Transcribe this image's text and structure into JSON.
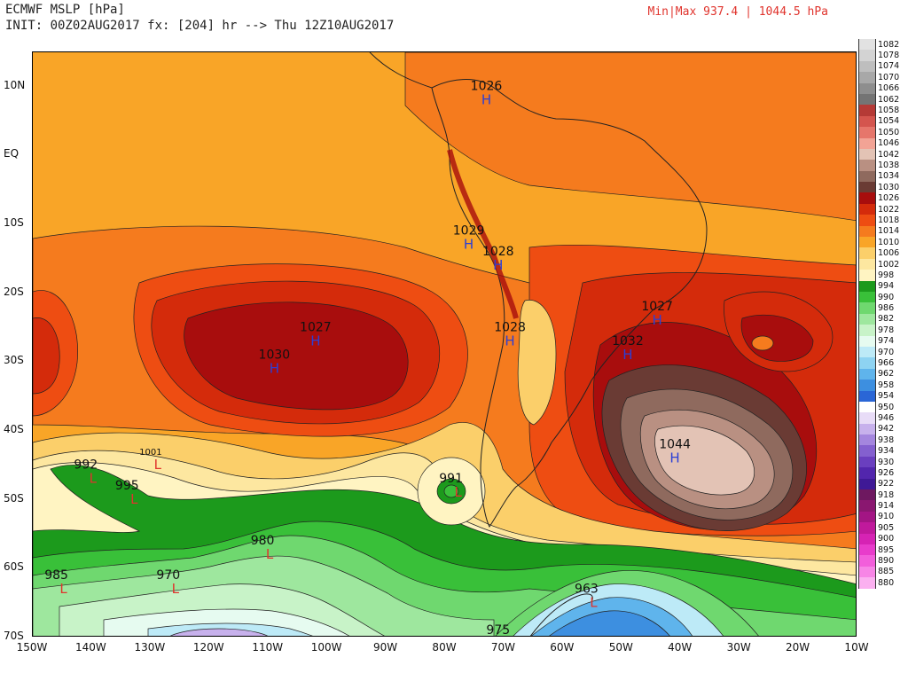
{
  "header": {
    "title": "ECMWF MSLP [hPa]",
    "init": "INIT: 00Z02AUG2017 fx: [204] hr --> Thu 12Z10AUG2017",
    "minmax": "Min|Max 937.4 | 1044.5 hPa"
  },
  "lat_labels": [
    {
      "text": "10N",
      "lat": 10
    },
    {
      "text": "EQ",
      "lat": 0
    },
    {
      "text": "10S",
      "lat": -10
    },
    {
      "text": "20S",
      "lat": -20
    },
    {
      "text": "30S",
      "lat": -30
    },
    {
      "text": "40S",
      "lat": -40
    },
    {
      "text": "50S",
      "lat": -50
    },
    {
      "text": "60S",
      "lat": -60
    },
    {
      "text": "70S",
      "lat": -70
    }
  ],
  "lon_labels": [
    {
      "text": "150W",
      "lon": -150
    },
    {
      "text": "140W",
      "lon": -140
    },
    {
      "text": "130W",
      "lon": -130
    },
    {
      "text": "120W",
      "lon": -120
    },
    {
      "text": "110W",
      "lon": -110
    },
    {
      "text": "100W",
      "lon": -100
    },
    {
      "text": "90W",
      "lon": -90
    },
    {
      "text": "80W",
      "lon": -80
    },
    {
      "text": "70W",
      "lon": -70
    },
    {
      "text": "60W",
      "lon": -60
    },
    {
      "text": "50W",
      "lon": -50
    },
    {
      "text": "40W",
      "lon": -40
    },
    {
      "text": "30W",
      "lon": -30
    },
    {
      "text": "20W",
      "lon": -20
    },
    {
      "text": "10W",
      "lon": -10
    }
  ],
  "pressure_centers": [
    {
      "type": "H",
      "value": "1026",
      "lon": -73,
      "lat": 9
    },
    {
      "type": "H",
      "value": "1029",
      "lon": -76,
      "lat": -12
    },
    {
      "type": "H",
      "value": "1028",
      "lon": -71,
      "lat": -15
    },
    {
      "type": "H",
      "value": "1027",
      "lon": -102,
      "lat": -26
    },
    {
      "type": "H",
      "value": "1030",
      "lon": -109,
      "lat": -30
    },
    {
      "type": "H",
      "value": "1028",
      "lon": -69,
      "lat": -26
    },
    {
      "type": "H",
      "value": "1027",
      "lon": -44,
      "lat": -23
    },
    {
      "type": "H",
      "value": "1032",
      "lon": -49,
      "lat": -28
    },
    {
      "type": "H",
      "value": "1044",
      "lon": -41,
      "lat": -43
    },
    {
      "type": "L",
      "value": "992",
      "lon": -141,
      "lat": -46
    },
    {
      "type": "L",
      "value": "1001",
      "lon": -130,
      "lat": -44
    },
    {
      "type": "L",
      "value": "995",
      "lon": -134,
      "lat": -49
    },
    {
      "type": "L",
      "value": "991",
      "lon": -79,
      "lat": -48
    },
    {
      "type": "L",
      "value": "980",
      "lon": -111,
      "lat": -57
    },
    {
      "type": "L",
      "value": "985",
      "lon": -146,
      "lat": -62
    },
    {
      "type": "L",
      "value": "970",
      "lon": -127,
      "lat": -62
    },
    {
      "type": "L",
      "value": "963",
      "lon": -56,
      "lat": -64
    },
    {
      "type": "L",
      "value": "975",
      "lon": -71,
      "lat": -70
    }
  ],
  "colorbar": [
    {
      "v": "1082",
      "c": "#e2e2e2"
    },
    {
      "v": "1078",
      "c": "#d3d3d3"
    },
    {
      "v": "1074",
      "c": "#bebebe"
    },
    {
      "v": "1070",
      "c": "#a8a8a8"
    },
    {
      "v": "1066",
      "c": "#8e8e8e"
    },
    {
      "v": "1062",
      "c": "#747474"
    },
    {
      "v": "1058",
      "c": "#b53a36"
    },
    {
      "v": "1054",
      "c": "#d4554e"
    },
    {
      "v": "1050",
      "c": "#e6766b"
    },
    {
      "v": "1046",
      "c": "#f2a395"
    },
    {
      "v": "1042",
      "c": "#e3c3b5"
    },
    {
      "v": "1038",
      "c": "#b99082"
    },
    {
      "v": "1034",
      "c": "#8f6a5e"
    },
    {
      "v": "1030",
      "c": "#6a3b34"
    },
    {
      "v": "1026",
      "c": "#a80d0d"
    },
    {
      "v": "1022",
      "c": "#d42b0b"
    },
    {
      "v": "1018",
      "c": "#ee4d12"
    },
    {
      "v": "1014",
      "c": "#f57b1e"
    },
    {
      "v": "1010",
      "c": "#f9a527"
    },
    {
      "v": "1006",
      "c": "#fbcf6a"
    },
    {
      "v": "1002",
      "c": "#fde7a0"
    },
    {
      "v": "998",
      "c": "#fff4c2"
    },
    {
      "v": "994",
      "c": "#1c9a1c"
    },
    {
      "v": "990",
      "c": "#39c039"
    },
    {
      "v": "986",
      "c": "#6fd86f"
    },
    {
      "v": "982",
      "c": "#9ee79e"
    },
    {
      "v": "978",
      "c": "#c8f3c8"
    },
    {
      "v": "974",
      "c": "#e6fbf0"
    },
    {
      "v": "970",
      "c": "#bdeaf7"
    },
    {
      "v": "966",
      "c": "#8ed3f2"
    },
    {
      "v": "962",
      "c": "#5fb4ec"
    },
    {
      "v": "958",
      "c": "#3d8fe0"
    },
    {
      "v": "954",
      "c": "#2a66d6"
    },
    {
      "v": "950",
      "c": "#ffffff"
    },
    {
      "v": "946",
      "c": "#e8dcf7"
    },
    {
      "v": "942",
      "c": "#c7b1ec"
    },
    {
      "v": "938",
      "c": "#a486de"
    },
    {
      "v": "934",
      "c": "#8460cf"
    },
    {
      "v": "930",
      "c": "#6a3fbf"
    },
    {
      "v": "926",
      "c": "#5226ad"
    },
    {
      "v": "922",
      "c": "#3f1996"
    },
    {
      "v": "918",
      "c": "#6e1860"
    },
    {
      "v": "914",
      "c": "#8a1770"
    },
    {
      "v": "910",
      "c": "#a31584"
    },
    {
      "v": "905",
      "c": "#c0199c"
    },
    {
      "v": "900",
      "c": "#d623b4"
    },
    {
      "v": "895",
      "c": "#e83ccb"
    },
    {
      "v": "890",
      "c": "#f25edb"
    },
    {
      "v": "885",
      "c": "#f785e6"
    },
    {
      "v": "880",
      "c": "#fbb0f0"
    }
  ]
}
